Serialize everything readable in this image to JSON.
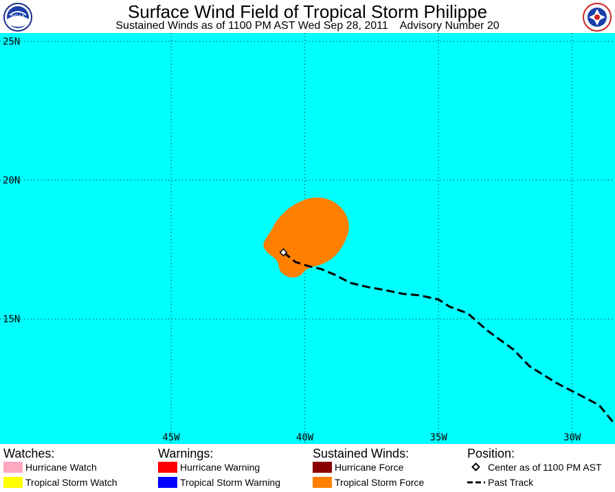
{
  "header": {
    "title": "Surface Wind Field of Tropical Storm Philippe",
    "subtitle": "Sustained Winds as of 1100 PM AST Wed Sep 28, 2011    Advisory Number 20"
  },
  "logos": {
    "left": {
      "name": "noaa-logo",
      "text": "NOAA"
    },
    "right": {
      "name": "nws-logo",
      "text": "NATIONAL WEATHER SERVICE"
    }
  },
  "map": {
    "lat_range": [
      10.5,
      25.3
    ],
    "lon_range": [
      -51.4,
      -28.4
    ],
    "lat_labels": [
      {
        "lat": 25,
        "text": "25N"
      },
      {
        "lat": 20,
        "text": "20N"
      },
      {
        "lat": 15,
        "text": "15N"
      }
    ],
    "lon_labels": [
      {
        "lon": -45,
        "text": "45W"
      },
      {
        "lon": -40,
        "text": "40W"
      },
      {
        "lon": -35,
        "text": "35W"
      },
      {
        "lon": -30,
        "text": "30W"
      }
    ],
    "colors": {
      "ocean": "#00ffff",
      "grid": "#000000",
      "tropical_storm_force": "#ff8000",
      "track": "#000000"
    },
    "storm_center": {
      "lat": 17.4,
      "lon": -40.8
    },
    "tropical_storm_force_field": [
      [
        18.6,
        -41.0
      ],
      [
        19.05,
        -40.5
      ],
      [
        19.35,
        -39.8
      ],
      [
        19.3,
        -39.1
      ],
      [
        18.9,
        -38.55
      ],
      [
        18.3,
        -38.35
      ],
      [
        17.7,
        -38.55
      ],
      [
        17.25,
        -38.9
      ],
      [
        17.0,
        -39.3
      ],
      [
        16.8,
        -39.9
      ],
      [
        16.55,
        -40.2
      ],
      [
        16.5,
        -40.55
      ],
      [
        16.7,
        -40.9
      ],
      [
        17.1,
        -41.05
      ],
      [
        17.4,
        -41.4
      ],
      [
        17.65,
        -41.55
      ],
      [
        17.9,
        -41.45
      ],
      [
        18.2,
        -41.25
      ]
    ],
    "past_track": [
      [
        17.4,
        -40.8
      ],
      [
        17.05,
        -40.35
      ],
      [
        16.9,
        -39.85
      ],
      [
        16.8,
        -39.4
      ],
      [
        16.6,
        -38.9
      ],
      [
        16.3,
        -38.3
      ],
      [
        16.15,
        -37.65
      ],
      [
        16.05,
        -37.05
      ],
      [
        15.9,
        -36.3
      ],
      [
        15.85,
        -35.7
      ],
      [
        15.7,
        -35.0
      ],
      [
        15.45,
        -34.6
      ],
      [
        15.2,
        -33.9
      ],
      [
        14.6,
        -33.2
      ],
      [
        13.9,
        -32.2
      ],
      [
        13.3,
        -31.6
      ],
      [
        12.7,
        -30.6
      ],
      [
        12.2,
        -29.6
      ],
      [
        11.9,
        -29.0
      ],
      [
        11.2,
        -28.4
      ]
    ]
  },
  "legend": {
    "watches": {
      "heading": "Watches:",
      "items": [
        {
          "label": "Hurricane Watch",
          "color": "#ffa8c0"
        },
        {
          "label": "Tropical Storm Watch",
          "color": "#ffff00"
        }
      ]
    },
    "warnings": {
      "heading": "Warnings:",
      "items": [
        {
          "label": "Hurricane Warning",
          "color": "#ff0000"
        },
        {
          "label": "Tropical Storm Warning",
          "color": "#0000ff"
        }
      ]
    },
    "sustained_winds": {
      "heading": "Sustained Winds:",
      "items": [
        {
          "label": "Hurricane Force",
          "color": "#8b0000"
        },
        {
          "label": "Tropical Storm Force",
          "color": "#ff8000"
        }
      ]
    },
    "position": {
      "heading": "Position:",
      "items": [
        {
          "label": "Center as of 1100 PM AST",
          "icon": "diamond-icon"
        },
        {
          "label": "Past Track",
          "icon": "dashed-line-icon"
        }
      ]
    }
  }
}
